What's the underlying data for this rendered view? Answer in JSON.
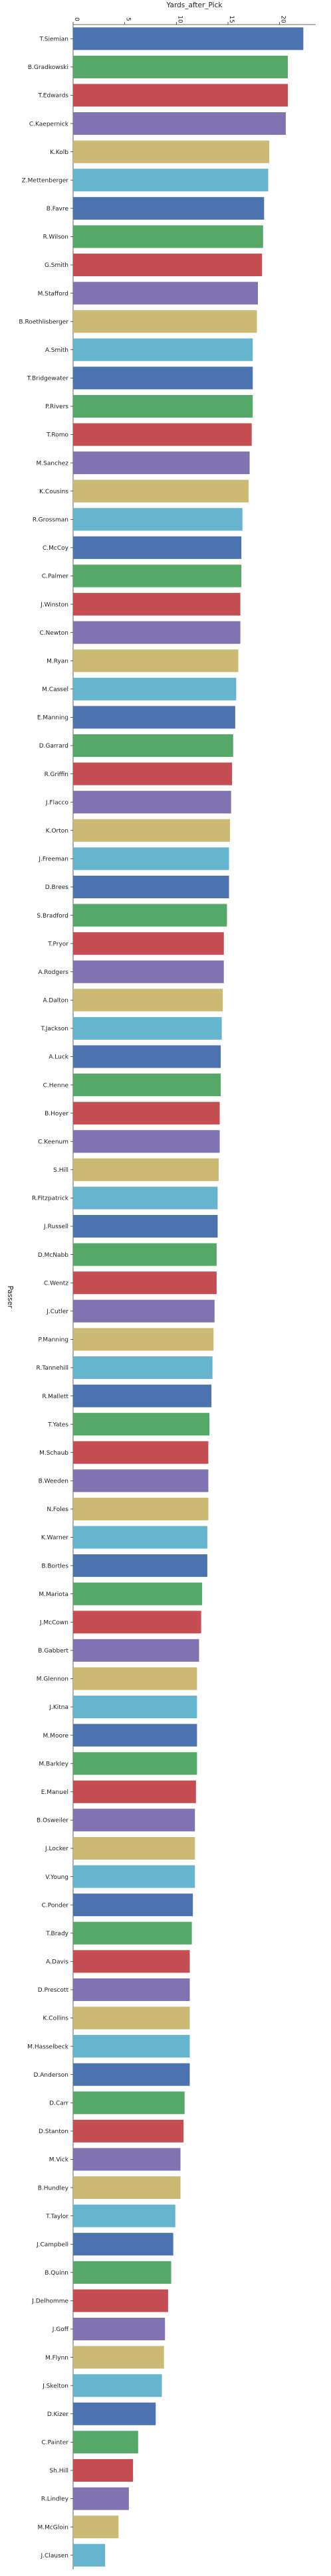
{
  "chart_data": {
    "type": "bar",
    "orientation": "horizontal",
    "xlabel": "Yards_after_Pick",
    "ylabel": "Passer",
    "xlim": [
      0,
      23.5
    ],
    "xticks": [
      0,
      5,
      10,
      15,
      20
    ],
    "x_axis_position": "top",
    "grid": false,
    "categories": [
      "T.Siemian",
      "B.Gradkowski",
      "T.Edwards",
      "C.Kaepernick",
      "K.Kolb",
      "Z.Mettenberger",
      "B.Favre",
      "R.Wilson",
      "G.Smith",
      "M.Stafford",
      "B.Roethlisberger",
      "A.Smith",
      "T.Bridgewater",
      "P.Rivers",
      "T.Romo",
      "M.Sanchez",
      "K.Cousins",
      "R.Grossman",
      "C.McCoy",
      "C.Palmer",
      "J.Winston",
      "C.Newton",
      "M.Ryan",
      "M.Cassel",
      "E.Manning",
      "D.Garrard",
      "R.Griffin",
      "J.Flacco",
      "K.Orton",
      "J.Freeman",
      "D.Brees",
      "S.Bradford",
      "T.Pryor",
      "A.Rodgers",
      "A.Dalton",
      "T.Jackson",
      "A.Luck",
      "C.Henne",
      "B.Hoyer",
      "C.Keenum",
      "S.Hill",
      "R.Fitzpatrick",
      "J.Russell",
      "D.McNabb",
      "C.Wentz",
      "J.Cutler",
      "P.Manning",
      "R.Tannehill",
      "R.Mallett",
      "T.Yates",
      "M.Schaub",
      "B.Weeden",
      "N.Foles",
      "K.Warner",
      "B.Bortles",
      "M.Mariota",
      "J.McCown",
      "B.Gabbert",
      "M.Glennon",
      "J.Kitna",
      "M.Moore",
      "M.Barkley",
      "E.Manuel",
      "B.Osweiler",
      "J.Locker",
      "V.Young",
      "C.Ponder",
      "T.Brady",
      "A.Davis",
      "D.Prescott",
      "K.Collins",
      "M.Hasselbeck",
      "D.Anderson",
      "D.Carr",
      "D.Stanton",
      "M.Vick",
      "B.Hundley",
      "T.Taylor",
      "J.Campbell",
      "B.Quinn",
      "J.Delhomme",
      "J.Goff",
      "M.Flynn",
      "J.Skelton",
      "D.Kizer",
      "C.Painter",
      "Sh.Hill",
      "R.Lindley",
      "M.McGloin",
      "J.Clausen"
    ],
    "values": [
      22.3,
      20.8,
      20.8,
      20.6,
      19.0,
      18.9,
      18.5,
      18.4,
      18.3,
      17.9,
      17.8,
      17.4,
      17.4,
      17.4,
      17.3,
      17.1,
      17.0,
      16.4,
      16.3,
      16.3,
      16.2,
      16.2,
      16.0,
      15.8,
      15.7,
      15.5,
      15.4,
      15.3,
      15.2,
      15.1,
      15.1,
      14.9,
      14.6,
      14.6,
      14.5,
      14.4,
      14.3,
      14.3,
      14.2,
      14.2,
      14.1,
      14.0,
      14.0,
      13.9,
      13.9,
      13.7,
      13.6,
      13.5,
      13.4,
      13.2,
      13.1,
      13.1,
      13.1,
      13.0,
      13.0,
      12.5,
      12.4,
      12.2,
      12.0,
      12.0,
      12.0,
      12.0,
      11.9,
      11.8,
      11.8,
      11.8,
      11.6,
      11.5,
      11.3,
      11.3,
      11.3,
      11.3,
      11.3,
      10.8,
      10.7,
      10.4,
      10.4,
      9.9,
      9.7,
      9.5,
      9.2,
      8.9,
      8.8,
      8.6,
      8.0,
      6.3,
      5.8,
      5.4,
      4.4,
      3.1
    ],
    "palette": [
      "#4c72b0",
      "#55a868",
      "#c44e52",
      "#8172b2",
      "#ccb974",
      "#64b5cd"
    ]
  }
}
